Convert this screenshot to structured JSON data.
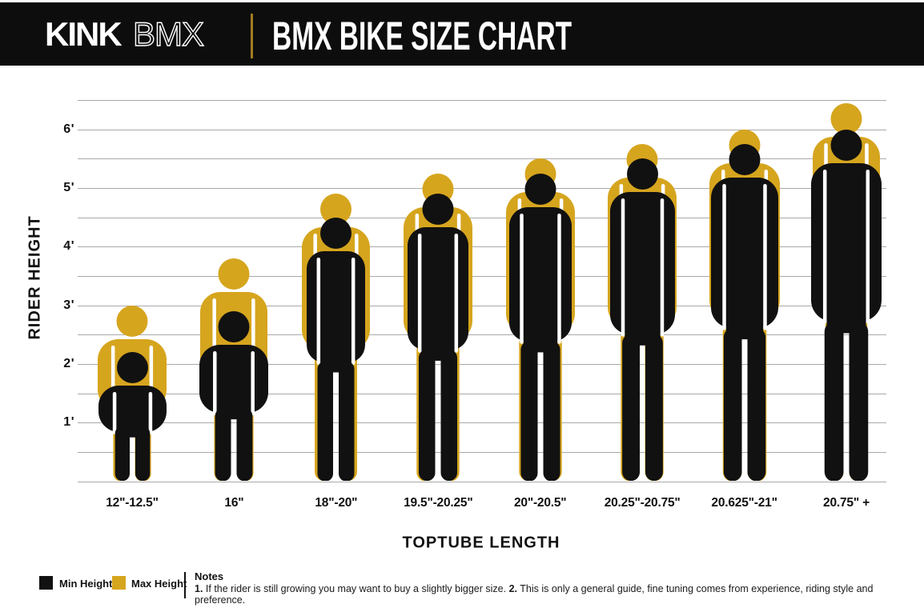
{
  "header": {
    "brand_bold": "KINK",
    "brand_outline": "BMX",
    "title": "BMX BIKE SIZE CHART"
  },
  "chart_data": {
    "type": "pictogram-bar",
    "title": "BMX BIKE SIZE CHART",
    "xlabel": "TOPTUBE LENGTH",
    "ylabel": "RIDER HEIGHT",
    "categories": [
      "12\"-12.5\"",
      "16\"",
      "18\"-20\"",
      "19.5\"-20.25\"",
      "20\"-20.5\"",
      "20.25\"-20.75\"",
      "20.625\"-21\"",
      "20.75\" +"
    ],
    "series": [
      {
        "name": "Min Height",
        "color": "#111111",
        "values_ft": [
          2.2,
          2.9,
          4.5,
          4.9,
          5.25,
          5.5,
          5.75,
          6.0
        ]
      },
      {
        "name": "Max Height",
        "color": "#d6a51e",
        "values_ft": [
          3.0,
          3.8,
          4.9,
          5.25,
          5.5,
          5.75,
          6.0,
          6.45
        ]
      }
    ],
    "y_ticks": [
      "1'",
      "2'",
      "3'",
      "4'",
      "5'",
      "6'"
    ],
    "y_range_ft": [
      0,
      6.5
    ],
    "grid_step_ft": 0.5,
    "grid": "on",
    "legend_position": "bottom-left"
  },
  "legend": {
    "items": [
      {
        "label": "Min Height",
        "color": "#111111"
      },
      {
        "label": "Max Height",
        "color": "#d6a51e"
      }
    ]
  },
  "notes": {
    "heading": "Notes",
    "items": [
      {
        "num": "1.",
        "text": " If the rider is still growing you may want to buy a slightly bigger size. "
      },
      {
        "num": "2.",
        "text": " This is only a general guide, fine tuning comes from experience, riding style and preference."
      }
    ]
  },
  "colors": {
    "figure_black": "#111111",
    "figure_gold": "#d6a51e",
    "gridline": "#a9a9a9",
    "header_bg": "#0d0d0d",
    "header_divider": "#a37c20"
  }
}
